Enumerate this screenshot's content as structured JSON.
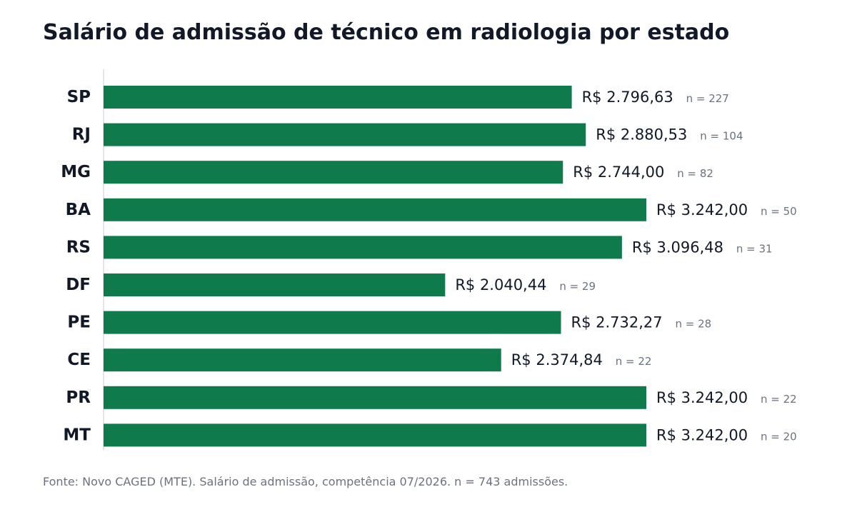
{
  "chart_data": {
    "type": "bar",
    "orientation": "horizontal",
    "title": "Salário de admissão de técnico em radiologia por estado",
    "categories": [
      "SP",
      "RJ",
      "MG",
      "BA",
      "RS",
      "DF",
      "PE",
      "CE",
      "PR",
      "MT"
    ],
    "values": [
      2796.63,
      2880.53,
      2744.0,
      3242.0,
      3096.48,
      2040.44,
      2732.27,
      2374.84,
      3242.0,
      3242.0
    ],
    "value_labels": [
      "R$ 2.796,63",
      "R$ 2.880,53",
      "R$ 2.744,00",
      "R$ 3.242,00",
      "R$ 3.096,48",
      "R$ 2.040,44",
      "R$ 2.732,27",
      "R$ 2.374,84",
      "R$ 3.242,00",
      "R$ 3.242,00"
    ],
    "n_labels": [
      "n = 227",
      "n = 104",
      "n = 82",
      "n = 50",
      "n = 31",
      "n = 29",
      "n = 28",
      "n = 22",
      "n = 22",
      "n = 20"
    ],
    "xlim": [
      0,
      3242
    ],
    "grid": false,
    "bar_color": "#0f7b4d"
  },
  "footer": {
    "source": "Fonte: Novo CAGED (MTE). Salário de admissão, competência 07/2026. n = 743 admissões."
  }
}
